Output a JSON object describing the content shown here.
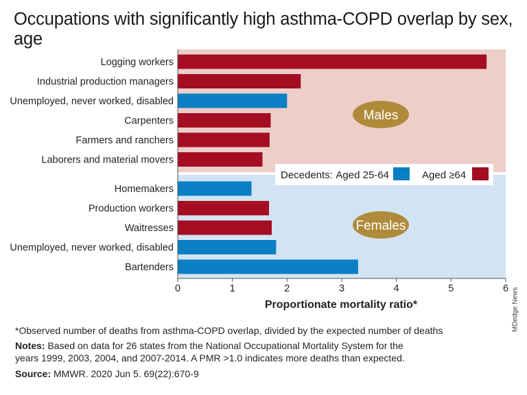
{
  "title": "Occupations with significantly high asthma-COPD overlap by sex, age",
  "colors": {
    "aged_25_64": "#0a7fc4",
    "aged_64_plus": "#a50d22",
    "males_bg": "#edcec9",
    "females_bg": "#d2e4f3",
    "group_label_bg": "#b08a3b"
  },
  "chart_data": {
    "type": "bar",
    "orientation": "horizontal",
    "xlabel": "Proportionate mortality ratio*",
    "xlim": [
      0,
      6
    ],
    "xticks": [
      "0",
      "1",
      "2",
      "3",
      "4",
      "5",
      "6"
    ],
    "legend": {
      "title": "Decedents:",
      "placement": "middle-right",
      "entries": [
        {
          "label": "Aged 25-64",
          "color": "#0a7fc4"
        },
        {
          "label": "Aged ≥64",
          "color": "#a50d22"
        }
      ]
    },
    "groups": [
      {
        "name": "Males",
        "bars": [
          {
            "category": "Logging workers",
            "value": 5.65,
            "age": "Aged ≥64"
          },
          {
            "category": "Industrial production managers",
            "value": 2.25,
            "age": "Aged ≥64"
          },
          {
            "category": "Unemployed, never worked, disabled",
            "value": 2.0,
            "age": "Aged 25-64"
          },
          {
            "category": "Carpenters",
            "value": 1.7,
            "age": "Aged ≥64"
          },
          {
            "category": "Farmers and ranchers",
            "value": 1.68,
            "age": "Aged ≥64"
          },
          {
            "category": "Laborers and material movers",
            "value": 1.55,
            "age": "Aged ≥64"
          }
        ]
      },
      {
        "name": "Females",
        "bars": [
          {
            "category": "Homemakers",
            "value": 1.35,
            "age": "Aged 25-64"
          },
          {
            "category": "Production workers",
            "value": 1.67,
            "age": "Aged ≥64"
          },
          {
            "category": "Waitresses",
            "value": 1.72,
            "age": "Aged ≥64"
          },
          {
            "category": "Unemployed, never worked, disabled",
            "value": 1.8,
            "age": "Aged 25-64"
          },
          {
            "category": "Bartenders",
            "value": 3.3,
            "age": "Aged 25-64"
          }
        ]
      }
    ]
  },
  "footnotes": {
    "asterisk": "*Observed number of deaths from asthma-COPD overlap, divided by the expected number of deaths",
    "notes_label": "Notes:",
    "notes_line1": " Based on data for 26 states from the National Occupational Mortality System for the",
    "notes_line2": "years 1999, 2003, 2004, and 2007-2014. A PMR >1.0 indicates more deaths than expected.",
    "source_label": "Source:",
    "source_text": " MMWR. 2020 Jun 5. 69(22):670-9"
  },
  "credit": "MDedge News"
}
